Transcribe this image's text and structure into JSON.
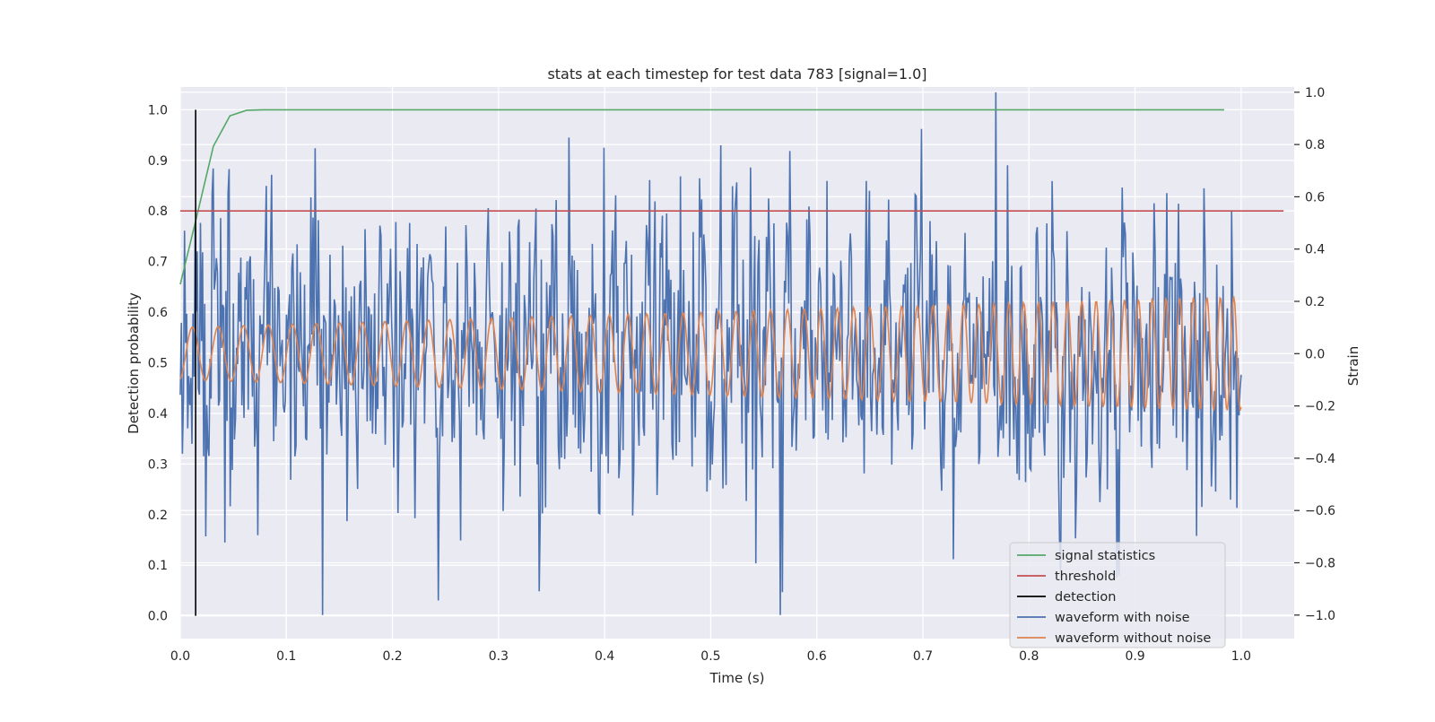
{
  "chart_data": {
    "type": "line",
    "title": "stats at each timestep for test data 783 [signal=1.0]",
    "xlabel": "Time (s)",
    "ylabel": "Detection probability",
    "y2label": "Strain",
    "xlim": [
      0.0,
      1.05
    ],
    "ylim": [
      -0.045,
      1.045
    ],
    "y2lim": [
      -1.09,
      1.02
    ],
    "xticks": [
      "0.0",
      "0.1",
      "0.2",
      "0.3",
      "0.4",
      "0.5",
      "0.6",
      "0.7",
      "0.8",
      "0.9",
      "1.0"
    ],
    "yticks": [
      "0.0",
      "0.1",
      "0.2",
      "0.3",
      "0.4",
      "0.5",
      "0.6",
      "0.7",
      "0.8",
      "0.9",
      "1.0"
    ],
    "y2ticks": [
      "−1.0",
      "−0.8",
      "−0.6",
      "−0.4",
      "−0.2",
      "0.0",
      "0.2",
      "0.4",
      "0.6",
      "0.8",
      "1.0"
    ],
    "grid": true,
    "legend_position": "lower-right",
    "series": [
      {
        "name": "signal statistics",
        "axis": "left",
        "color": "#55a868",
        "x": [
          0.0,
          0.0156,
          0.0312,
          0.0468,
          0.0625,
          0.078,
          0.1,
          0.2,
          0.3,
          0.4,
          0.5,
          0.6,
          0.7,
          0.8,
          0.9,
          0.984
        ],
        "y": [
          0.655,
          0.79,
          0.928,
          0.988,
          0.999,
          1.0,
          1.0,
          1.0,
          1.0,
          1.0,
          1.0,
          1.0,
          1.0,
          1.0,
          1.0,
          1.0
        ]
      },
      {
        "name": "threshold",
        "axis": "left",
        "color": "#c44e52",
        "x": [
          0.0,
          1.04
        ],
        "y": [
          0.8,
          0.8
        ]
      },
      {
        "name": "detection",
        "axis": "left",
        "color": "#000000",
        "x": [
          0.0145,
          0.0145
        ],
        "y": [
          0.0,
          1.0
        ]
      },
      {
        "name": "waveform with noise",
        "axis": "right",
        "color": "#4c72b0",
        "samples": 1000,
        "x_range": [
          0.0,
          1.0
        ],
        "y_range": [
          -1.0,
          1.0
        ]
      },
      {
        "name": "waveform without noise",
        "axis": "right",
        "color": "#dd8452",
        "samples": 1000,
        "x_range": [
          0.0,
          1.0
        ],
        "amplitude_start": 0.1,
        "amplitude_end": 0.22,
        "freq_start_hz": 40,
        "freq_end_hz": 80
      }
    ]
  }
}
